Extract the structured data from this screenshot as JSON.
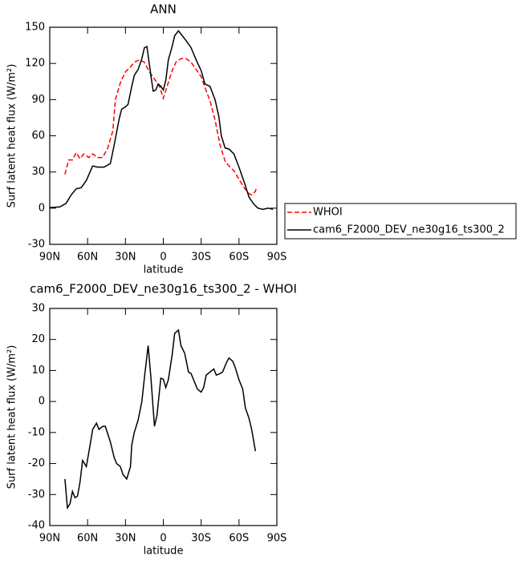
{
  "chart_data": [
    {
      "type": "line",
      "title": "ANN",
      "x_label": "latitude",
      "y_label": "Surf latent heat flux (W/m²)",
      "xlim": [
        90,
        -90
      ],
      "xticks": [
        {
          "value": 90,
          "label": "90N"
        },
        {
          "value": 60,
          "label": "60N"
        },
        {
          "value": 30,
          "label": "30N"
        },
        0,
        {
          "value": -30,
          "label": "30S"
        },
        {
          "value": -60,
          "label": "60S"
        },
        {
          "value": -90,
          "label": "90S"
        }
      ],
      "ylim": [
        -30,
        150
      ],
      "yticks": [
        -30,
        0,
        30,
        60,
        90,
        120,
        150
      ],
      "legend": "right",
      "series": [
        {
          "name": "WHOI",
          "color": "#ff0000",
          "linestyle": "dashed",
          "x": [
            78,
            75,
            72,
            69,
            66,
            63,
            59,
            56,
            52,
            48,
            44,
            40,
            38,
            34,
            30,
            26,
            23,
            19,
            15,
            11,
            7,
            3,
            0,
            -3,
            -7,
            -10,
            -14,
            -18,
            -22,
            -26,
            -30,
            -33,
            -37,
            -41,
            -45,
            -49,
            -52,
            -56,
            -60,
            -64,
            -68,
            -70,
            -73,
            -74
          ],
          "values": [
            28,
            40,
            40,
            46,
            41,
            45,
            42,
            45,
            42,
            42,
            50,
            64,
            90,
            104,
            113,
            117,
            121,
            123,
            121,
            113,
            107,
            101,
            91,
            101,
            114,
            121,
            124,
            124,
            121,
            115,
            109,
            100,
            89,
            73,
            52,
            39,
            35,
            31,
            24,
            17,
            12,
            11,
            14,
            18
          ]
        },
        {
          "name": "cam6_F2000_DEV_ne30g16_ts300_2",
          "color": "#000000",
          "linestyle": "solid",
          "x": [
            90,
            82,
            77,
            73,
            69,
            65,
            61,
            56,
            52,
            47,
            42,
            39,
            35,
            33,
            30,
            28,
            25,
            23,
            20,
            17,
            15,
            13,
            10,
            8,
            6,
            4,
            2,
            0,
            -2,
            -4,
            -7,
            -9,
            -12,
            -15,
            -18,
            -22,
            -26,
            -30,
            -33,
            -37,
            -41,
            -44,
            -46,
            -49,
            -52,
            -56,
            -60,
            -64,
            -68,
            -72,
            -75,
            -79,
            -83,
            -87
          ],
          "values": [
            0.5,
            1,
            4,
            11,
            16,
            17,
            23,
            35,
            34,
            34,
            37,
            52,
            74,
            82,
            84,
            86,
            101,
            110,
            115,
            124,
            133,
            134,
            111,
            97,
            98,
            103,
            101,
            98,
            106,
            123,
            134,
            143,
            147,
            143,
            139,
            133,
            123,
            114,
            103,
            101,
            90,
            76,
            60,
            50,
            49,
            45,
            34,
            22,
            9,
            3,
            0,
            -1,
            0,
            -1
          ]
        }
      ]
    },
    {
      "type": "line",
      "title": "cam6_F2000_DEV_ne30g16_ts300_2 - WHOI",
      "x_label": "latitude",
      "y_label": "Surf latent heat flux (W/m²)",
      "xlim": [
        90,
        -90
      ],
      "xticks": [
        {
          "value": 90,
          "label": "90N"
        },
        {
          "value": 60,
          "label": "60N"
        },
        {
          "value": 30,
          "label": "30N"
        },
        0,
        {
          "value": -30,
          "label": "30S"
        },
        {
          "value": -60,
          "label": "60S"
        },
        {
          "value": -90,
          "label": "90S"
        }
      ],
      "ylim": [
        -40,
        30
      ],
      "yticks": [
        -40,
        -30,
        -20,
        -10,
        0,
        10,
        20,
        30
      ],
      "series": [
        {
          "color": "#000000",
          "linestyle": "solid",
          "x": [
            78,
            76,
            74,
            72,
            70,
            68,
            66,
            64,
            61,
            58,
            56,
            53,
            51,
            48,
            46,
            42,
            39,
            37,
            34,
            32,
            29,
            26,
            25,
            23,
            20,
            17,
            15,
            12,
            10,
            7,
            5,
            2,
            0,
            -2,
            -4,
            -7,
            -9,
            -12,
            -14,
            -17,
            -20,
            -22,
            -25,
            -27,
            -30,
            -32,
            -34,
            -37,
            -40,
            -42,
            -45,
            -47,
            -50,
            -52,
            -55,
            -57,
            -60,
            -63,
            -65,
            -68,
            -70,
            -73
          ],
          "values": [
            -25,
            -34.3,
            -33,
            -29,
            -31,
            -30.5,
            -26,
            -19,
            -21,
            -14,
            -9,
            -7,
            -9,
            -8,
            -8,
            -13,
            -18,
            -20,
            -21,
            -23.5,
            -25,
            -21,
            -14,
            -10,
            -6,
            0,
            7.5,
            18,
            8.5,
            -8,
            -4.5,
            7.5,
            7.2,
            4.5,
            7,
            15,
            22,
            23,
            18,
            15.5,
            9.5,
            9,
            6,
            4,
            3,
            4.5,
            8.5,
            9.5,
            10.5,
            8.5,
            9,
            9.5,
            12.5,
            14,
            13,
            11,
            7,
            4,
            -2,
            -5.5,
            -9,
            -16
          ]
        }
      ]
    }
  ]
}
